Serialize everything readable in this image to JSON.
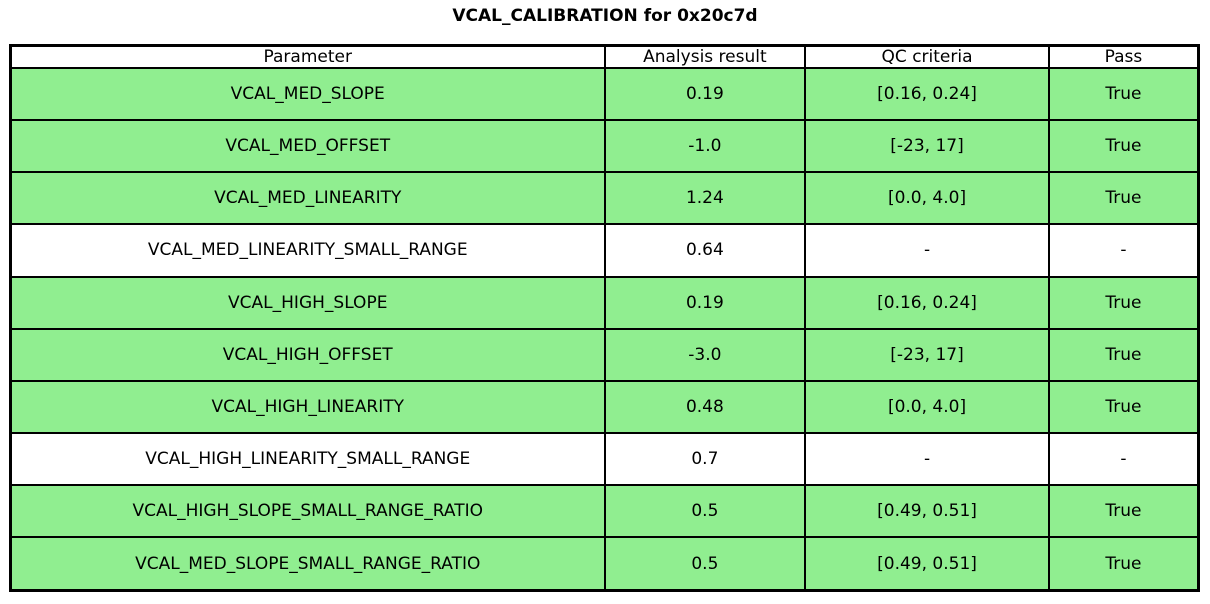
{
  "title": "VCAL_CALIBRATION for 0x20c7d",
  "colors": {
    "pass_green": "#90ee90",
    "row_default": "#ffffff",
    "header_bg": "#ffffff",
    "border": "#000000",
    "text": "#000000"
  },
  "table": {
    "columns": [
      "Parameter",
      "Analysis result",
      "QC criteria",
      "Pass"
    ],
    "rows": [
      {
        "parameter": "VCAL_MED_SLOPE",
        "result": "0.19",
        "qc": "[0.16, 0.24]",
        "pass": "True",
        "highlight": true
      },
      {
        "parameter": "VCAL_MED_OFFSET",
        "result": "-1.0",
        "qc": "[-23, 17]",
        "pass": "True",
        "highlight": true
      },
      {
        "parameter": "VCAL_MED_LINEARITY",
        "result": "1.24",
        "qc": "[0.0, 4.0]",
        "pass": "True",
        "highlight": true
      },
      {
        "parameter": "VCAL_MED_LINEARITY_SMALL_RANGE",
        "result": "0.64",
        "qc": "-",
        "pass": "-",
        "highlight": false
      },
      {
        "parameter": "VCAL_HIGH_SLOPE",
        "result": "0.19",
        "qc": "[0.16, 0.24]",
        "pass": "True",
        "highlight": true
      },
      {
        "parameter": "VCAL_HIGH_OFFSET",
        "result": "-3.0",
        "qc": "[-23, 17]",
        "pass": "True",
        "highlight": true
      },
      {
        "parameter": "VCAL_HIGH_LINEARITY",
        "result": "0.48",
        "qc": "[0.0, 4.0]",
        "pass": "True",
        "highlight": true
      },
      {
        "parameter": "VCAL_HIGH_LINEARITY_SMALL_RANGE",
        "result": "0.7",
        "qc": "-",
        "pass": "-",
        "highlight": false
      },
      {
        "parameter": "VCAL_HIGH_SLOPE_SMALL_RANGE_RATIO",
        "result": "0.5",
        "qc": "[0.49, 0.51]",
        "pass": "True",
        "highlight": true
      },
      {
        "parameter": "VCAL_MED_SLOPE_SMALL_RANGE_RATIO",
        "result": "0.5",
        "qc": "[0.49, 0.51]",
        "pass": "True",
        "highlight": true
      }
    ]
  },
  "chart_data": {
    "type": "table",
    "title": "VCAL_CALIBRATION for 0x20c7d",
    "columns": [
      "Parameter",
      "Analysis result",
      "QC criteria",
      "Pass"
    ],
    "rows": [
      [
        "VCAL_MED_SLOPE",
        "0.19",
        "[0.16, 0.24]",
        "True"
      ],
      [
        "VCAL_MED_OFFSET",
        "-1.0",
        "[-23, 17]",
        "True"
      ],
      [
        "VCAL_MED_LINEARITY",
        "1.24",
        "[0.0, 4.0]",
        "True"
      ],
      [
        "VCAL_MED_LINEARITY_SMALL_RANGE",
        "0.64",
        "-",
        "-"
      ],
      [
        "VCAL_HIGH_SLOPE",
        "0.19",
        "[0.16, 0.24]",
        "True"
      ],
      [
        "VCAL_HIGH_OFFSET",
        "-3.0",
        "[-23, 17]",
        "True"
      ],
      [
        "VCAL_HIGH_LINEARITY",
        "0.48",
        "[0.0, 4.0]",
        "True"
      ],
      [
        "VCAL_HIGH_LINEARITY_SMALL_RANGE",
        "0.7",
        "-",
        "-"
      ],
      [
        "VCAL_HIGH_SLOPE_SMALL_RANGE_RATIO",
        "0.5",
        "[0.49, 0.51]",
        "True"
      ],
      [
        "VCAL_MED_SLOPE_SMALL_RANGE_RATIO",
        "0.5",
        "[0.49, 0.51]",
        "True"
      ]
    ],
    "row_highlighted_green": [
      true,
      true,
      true,
      false,
      true,
      true,
      true,
      false,
      true,
      true
    ],
    "legend_position": "none",
    "grid": "full-cell-borders"
  }
}
